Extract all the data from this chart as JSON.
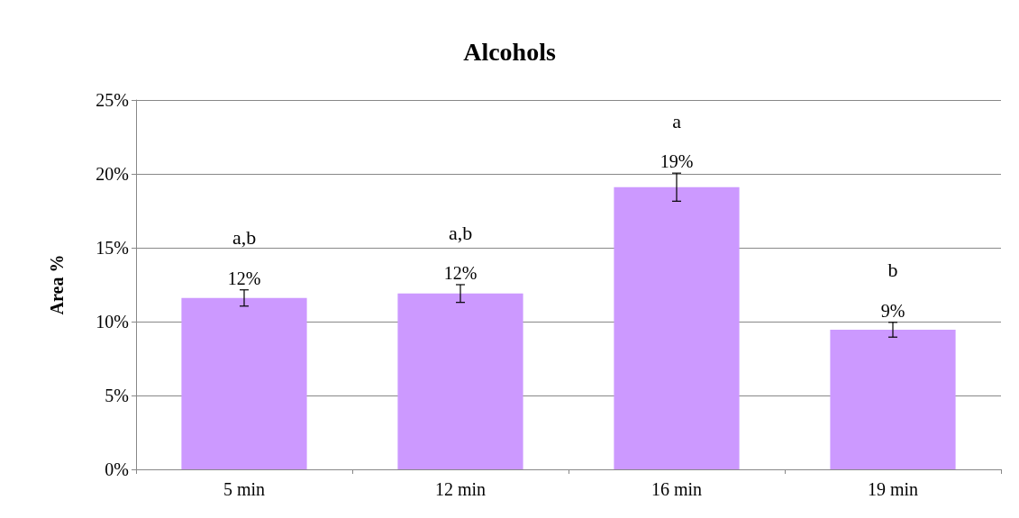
{
  "chart_data": {
    "type": "bar",
    "title": "Alcohols",
    "ylabel": "Area %",
    "categories": [
      "5 min",
      "12 min",
      "16 min",
      "19 min"
    ],
    "values": [
      11.6,
      11.9,
      19.1,
      9.45
    ],
    "errors": [
      0.55,
      0.6,
      0.95,
      0.5
    ],
    "value_labels": [
      "12%",
      "12%",
      "19%",
      "9%"
    ],
    "color": "#cc99ff",
    "ylim": [
      0,
      25
    ],
    "yticks": [
      {
        "value": 0,
        "label": "0%"
      },
      {
        "value": 5,
        "label": "5%"
      },
      {
        "value": 10,
        "label": "10%"
      },
      {
        "value": 15,
        "label": "15%"
      },
      {
        "value": 20,
        "label": "20%"
      },
      {
        "value": 25,
        "label": "25%"
      }
    ],
    "grid": "y",
    "annotations": [
      "a,b",
      "a,b",
      "a",
      "b"
    ]
  }
}
